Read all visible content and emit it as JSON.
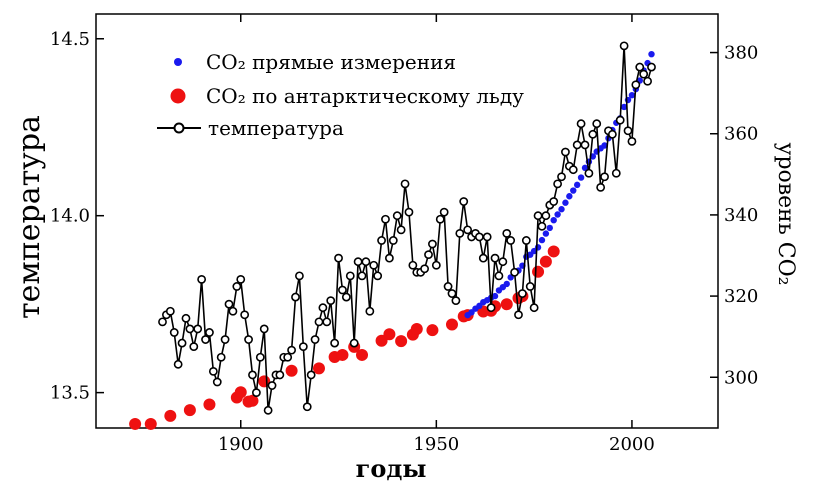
{
  "chart_data": {
    "type": "line",
    "xlabel": "годы",
    "ylabel": "температура",
    "y2label": "уровень CO₂",
    "xlim": [
      1863,
      2022
    ],
    "ylim": [
      13.4,
      14.57
    ],
    "y2lim": [
      287.5,
      389.5
    ],
    "x_ticks": [
      1900,
      1950,
      2000
    ],
    "y_ticks": [
      13.5,
      14.0,
      14.5
    ],
    "y2_ticks": [
      300,
      320,
      340,
      360,
      380
    ],
    "legend": {
      "position": "top-left",
      "entries": [
        {
          "label": "CO₂ прямые измерения",
          "marker": "small-dot",
          "color": "#1a1aee"
        },
        {
          "label": "CO₂ по антарктическому льду",
          "marker": "large-dot",
          "color": "#ee1111"
        },
        {
          "label": "температура",
          "marker": "open-circle-line",
          "color": "#000000"
        }
      ]
    },
    "series": [
      {
        "name": "температура",
        "axis": "left",
        "x": [
          1880,
          1881,
          1882,
          1883,
          1884,
          1885,
          1886,
          1887,
          1888,
          1889,
          1890,
          1891,
          1892,
          1893,
          1894,
          1895,
          1896,
          1897,
          1898,
          1899,
          1900,
          1901,
          1902,
          1903,
          1904,
          1905,
          1906,
          1907,
          1908,
          1909,
          1910,
          1911,
          1912,
          1913,
          1914,
          1915,
          1916,
          1917,
          1918,
          1919,
          1920,
          1921,
          1922,
          1923,
          1924,
          1925,
          1926,
          1927,
          1928,
          1929,
          1930,
          1931,
          1932,
          1933,
          1934,
          1935,
          1936,
          1937,
          1938,
          1939,
          1940,
          1941,
          1942,
          1943,
          1944,
          1945,
          1946,
          1947,
          1948,
          1949,
          1950,
          1951,
          1952,
          1953,
          1954,
          1955,
          1956,
          1957,
          1958,
          1959,
          1960,
          1961,
          1962,
          1963,
          1964,
          1965,
          1966,
          1967,
          1968,
          1969,
          1970,
          1971,
          1972,
          1973,
          1974,
          1975,
          1976,
          1977,
          1978,
          1979,
          1980,
          1981,
          1982,
          1983,
          1984,
          1985,
          1986,
          1987,
          1988,
          1989,
          1990,
          1991,
          1992,
          1993,
          1994,
          1995,
          1996,
          1997,
          1998,
          1999,
          2000,
          2001,
          2002,
          2003,
          2004,
          2005
        ],
        "values": [
          13.7,
          13.72,
          13.73,
          13.67,
          13.58,
          13.64,
          13.71,
          13.68,
          13.63,
          13.68,
          13.82,
          13.65,
          13.67,
          13.56,
          13.53,
          13.6,
          13.65,
          13.75,
          13.73,
          13.8,
          13.82,
          13.72,
          13.65,
          13.55,
          13.5,
          13.6,
          13.68,
          13.45,
          13.52,
          13.55,
          13.55,
          13.6,
          13.6,
          13.62,
          13.77,
          13.83,
          13.63,
          13.46,
          13.55,
          13.65,
          13.7,
          13.74,
          13.7,
          13.76,
          13.64,
          13.88,
          13.79,
          13.77,
          13.83,
          13.64,
          13.87,
          13.83,
          13.87,
          13.73,
          13.86,
          13.83,
          13.93,
          13.99,
          13.88,
          13.93,
          14.0,
          13.96,
          14.09,
          14.01,
          13.86,
          13.84,
          13.84,
          13.85,
          13.89,
          13.92,
          13.86,
          13.99,
          14.01,
          13.8,
          13.78,
          13.76,
          13.95,
          14.04,
          13.96,
          13.94,
          13.95,
          13.94,
          13.88,
          13.94,
          13.74,
          13.88,
          13.83,
          13.87,
          13.95,
          13.93,
          13.84,
          13.72,
          13.78,
          13.93,
          13.8,
          13.74,
          14.0,
          13.97,
          14.0,
          14.03,
          14.04,
          14.09,
          14.11,
          14.18,
          14.14,
          14.13,
          14.2,
          14.26,
          14.2,
          14.12,
          14.23,
          14.26,
          14.08,
          14.11,
          14.24,
          14.23,
          14.12,
          14.27,
          14.48,
          14.24,
          14.21,
          14.37,
          14.42,
          14.4,
          14.38,
          14.42
        ]
      },
      {
        "name": "CO₂ по антарктическому льду",
        "axis": "right",
        "x": [
          1873,
          1877,
          1882,
          1887,
          1892,
          1899,
          1900,
          1902,
          1903,
          1906,
          1913,
          1920,
          1924,
          1926,
          1929,
          1931,
          1936,
          1938,
          1941,
          1944,
          1945,
          1949,
          1954,
          1957,
          1958,
          1962,
          1964,
          1965,
          1968,
          1971,
          1972,
          1976,
          1978,
          1980
        ],
        "values": [
          288.5,
          288.5,
          290.5,
          291.9,
          293.3,
          295.0,
          296.3,
          294.0,
          294.2,
          299.0,
          301.6,
          302.2,
          305.0,
          305.5,
          307.5,
          305.5,
          309.0,
          310.6,
          308.9,
          310.5,
          311.9,
          311.6,
          313.0,
          315.0,
          315.3,
          316.2,
          316.4,
          317.5,
          318.0,
          319.5,
          320.0,
          326.0,
          328.5,
          331.0
        ]
      },
      {
        "name": "CO₂ прямые измерения",
        "axis": "right",
        "x": [
          1958,
          1959,
          1960,
          1961,
          1962,
          1963,
          1964,
          1965,
          1966,
          1967,
          1968,
          1969,
          1970,
          1971,
          1972,
          1973,
          1974,
          1975,
          1976,
          1977,
          1978,
          1979,
          1980,
          1981,
          1982,
          1983,
          1984,
          1985,
          1986,
          1987,
          1988,
          1989,
          1990,
          1991,
          1992,
          1993,
          1994,
          1995,
          1996,
          1997,
          1998,
          1999,
          2000,
          2001,
          2002,
          2003,
          2004,
          2005
        ],
        "values": [
          315.3,
          316.0,
          316.9,
          317.6,
          318.5,
          319.0,
          319.6,
          320.0,
          321.4,
          322.2,
          323.0,
          324.6,
          325.7,
          326.3,
          327.5,
          329.7,
          330.2,
          331.1,
          332.0,
          333.8,
          335.4,
          336.8,
          338.7,
          340.1,
          341.4,
          343.0,
          344.6,
          346.0,
          347.4,
          349.2,
          351.6,
          353.1,
          354.4,
          355.6,
          356.4,
          357.1,
          358.9,
          360.9,
          362.7,
          363.8,
          366.6,
          368.3,
          369.5,
          371.0,
          373.1,
          375.6,
          377.4,
          379.6
        ]
      }
    ]
  }
}
